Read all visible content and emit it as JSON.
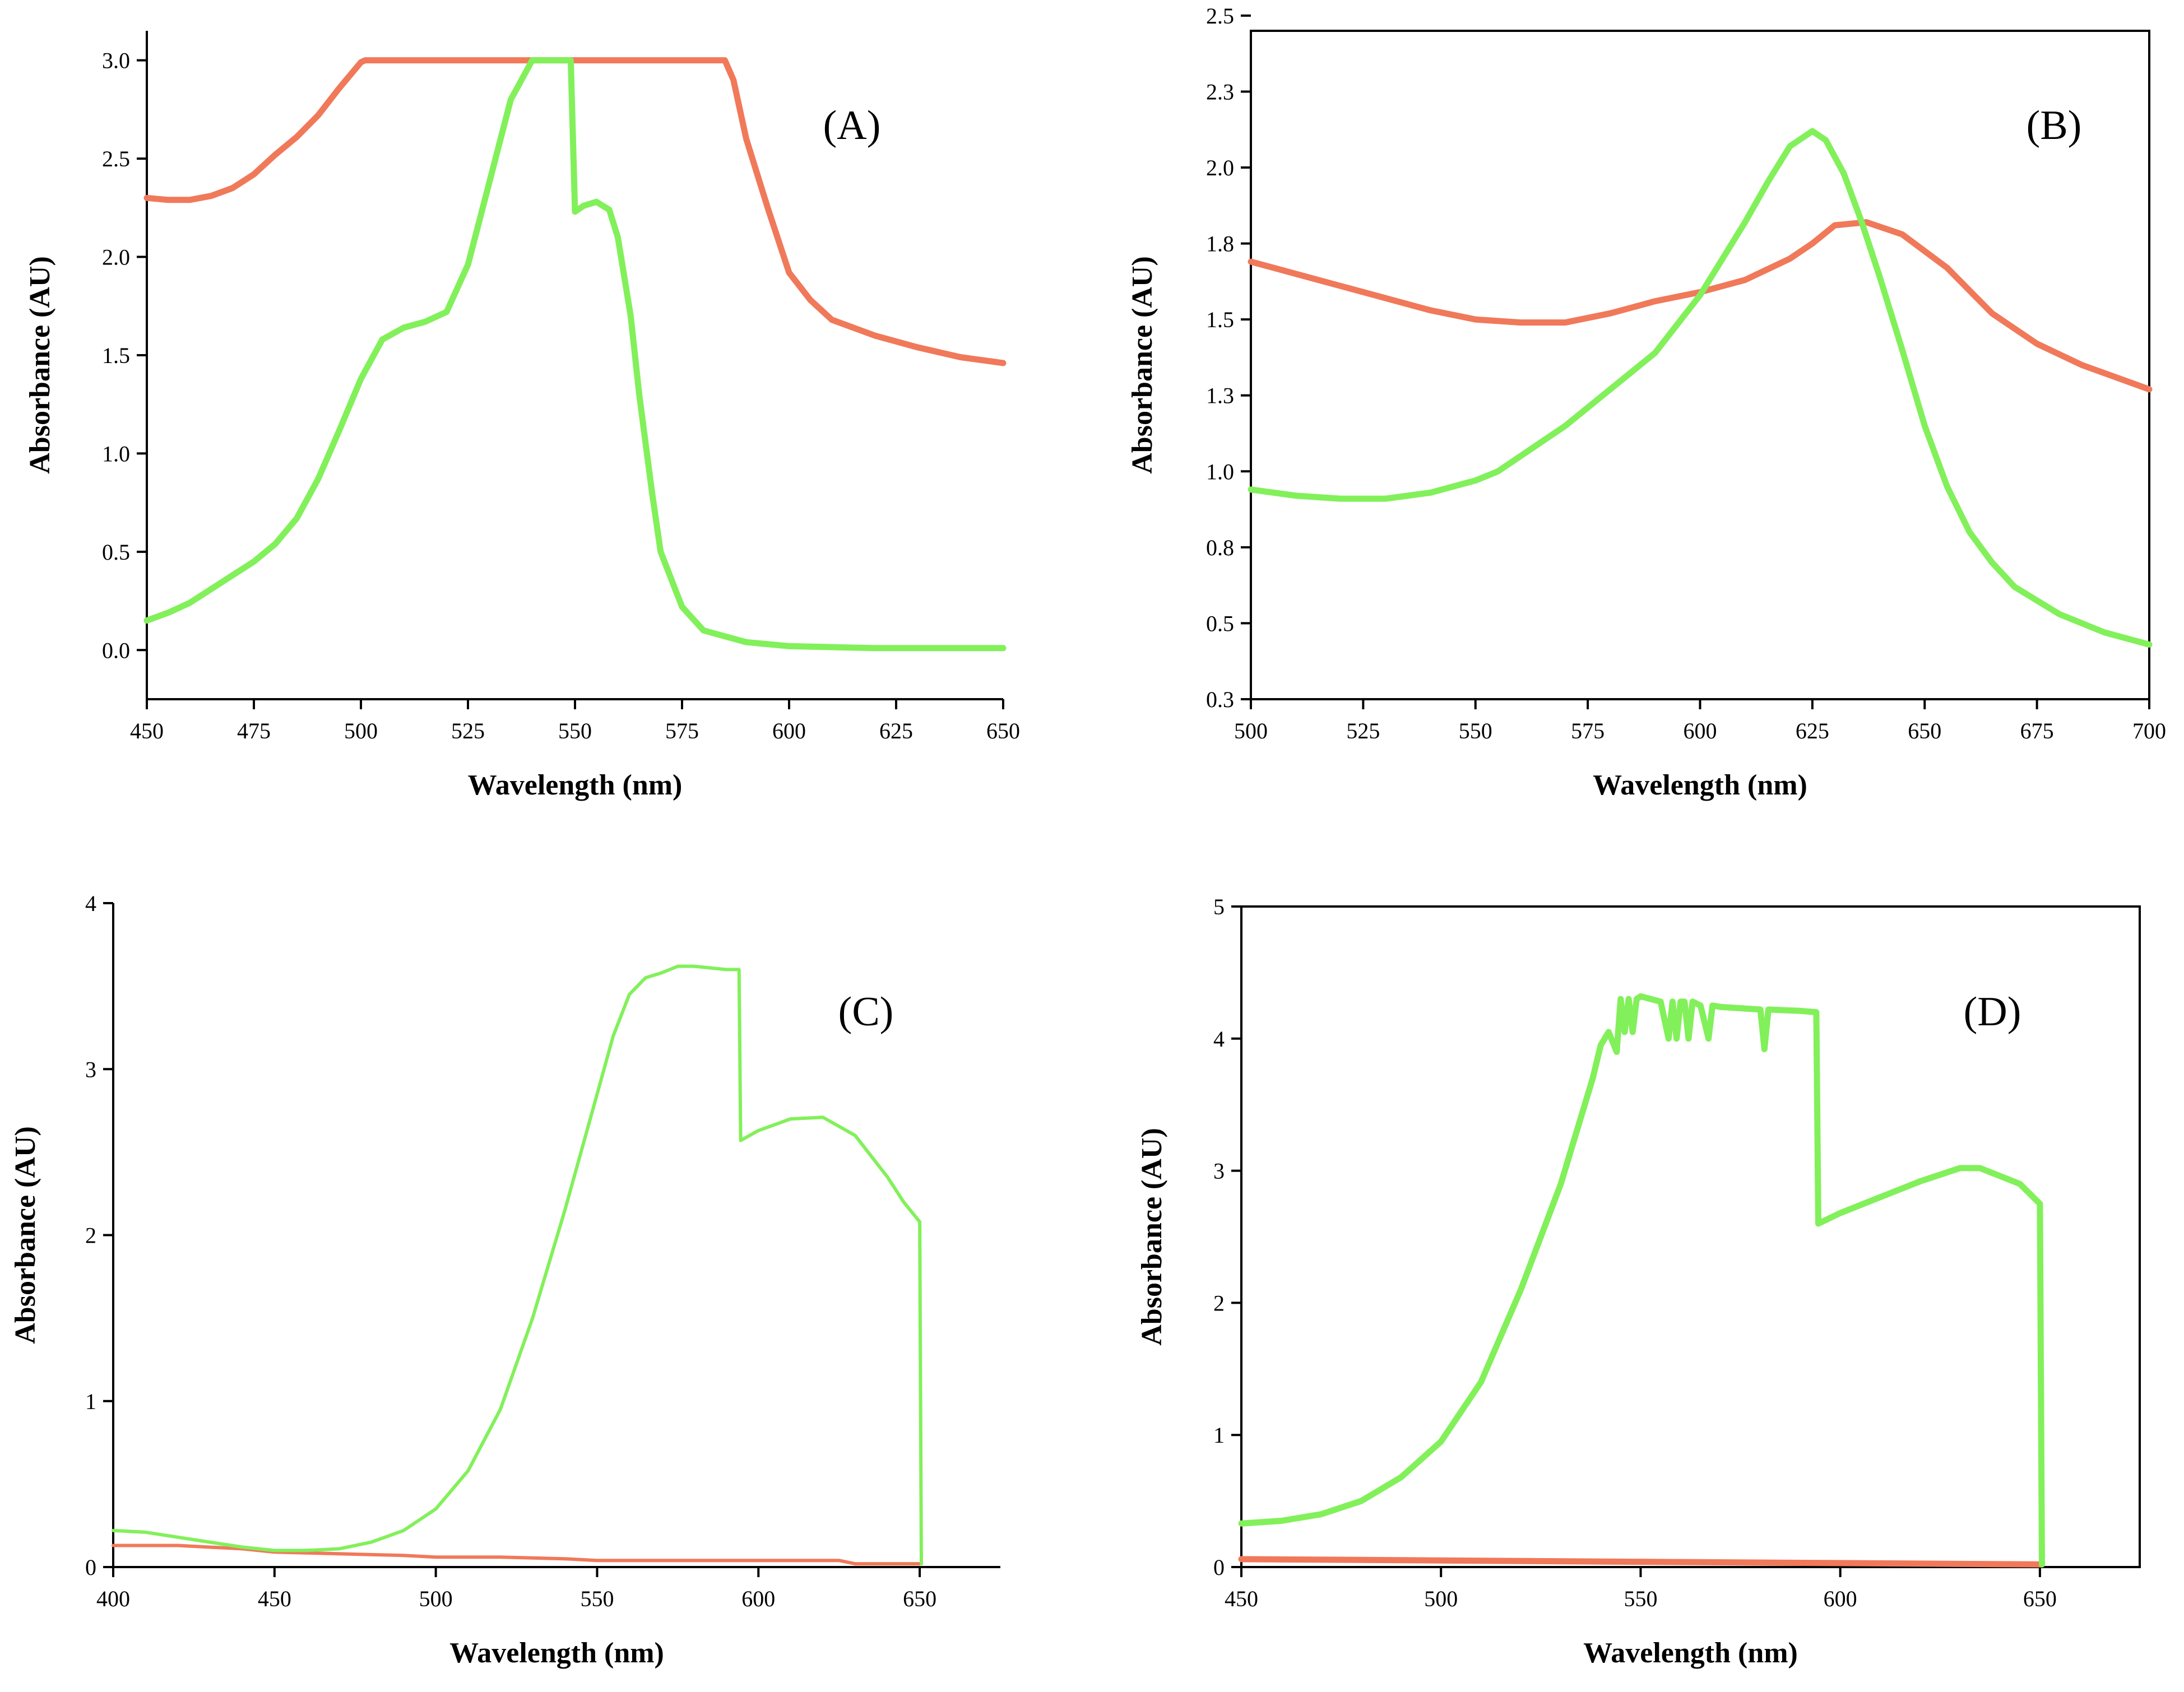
{
  "colors": {
    "green": "#82f05a",
    "red": "#f0795a"
  },
  "chart_data": [
    {
      "type": "line",
      "panel_label": "(A)",
      "xlabel": "Wavelength (nm)",
      "ylabel": "Absorbance (AU)",
      "xlim": [
        450,
        650
      ],
      "ylim": [
        -0.25,
        3.15
      ],
      "xticks": [
        "450",
        "475",
        "500",
        "525",
        "550",
        "575",
        "600",
        "625",
        "650"
      ],
      "yticks": [
        "0.0",
        "0.5",
        "1.0",
        "1.5",
        "2.0",
        "2.5",
        "3.0"
      ],
      "series": [
        {
          "name": "red",
          "color": "#f0795a",
          "x": [
            450,
            455,
            460,
            465,
            470,
            475,
            480,
            485,
            490,
            495,
            500,
            501,
            520,
            540,
            560,
            580,
            585,
            587,
            590,
            595,
            600,
            605,
            610,
            620,
            630,
            640,
            650
          ],
          "y": [
            2.3,
            2.29,
            2.29,
            2.31,
            2.35,
            2.42,
            2.52,
            2.61,
            2.72,
            2.86,
            2.99,
            3.0,
            3.0,
            3.0,
            3.0,
            3.0,
            3.0,
            2.9,
            2.6,
            2.25,
            1.92,
            1.78,
            1.68,
            1.6,
            1.54,
            1.49,
            1.46
          ]
        },
        {
          "name": "green",
          "color": "#82f05a",
          "x": [
            450,
            455,
            460,
            465,
            470,
            475,
            480,
            485,
            490,
            495,
            500,
            505,
            510,
            515,
            520,
            525,
            530,
            535,
            540,
            542,
            545,
            548,
            549,
            550,
            552,
            555,
            558,
            560,
            563,
            565,
            568,
            570,
            575,
            580,
            590,
            600,
            620,
            650
          ],
          "y": [
            0.15,
            0.19,
            0.24,
            0.31,
            0.38,
            0.45,
            0.54,
            0.67,
            0.87,
            1.12,
            1.38,
            1.58,
            1.64,
            1.67,
            1.72,
            1.96,
            2.38,
            2.8,
            3.0,
            3.0,
            3.0,
            3.0,
            3.0,
            2.23,
            2.26,
            2.28,
            2.24,
            2.1,
            1.7,
            1.3,
            0.8,
            0.5,
            0.22,
            0.1,
            0.04,
            0.02,
            0.01,
            0.01
          ]
        }
      ]
    },
    {
      "type": "line",
      "panel_label": "(B)",
      "xlabel": "Wavelength (nm)",
      "ylabel": "Absorbance (AU)",
      "xlim": [
        500,
        700
      ],
      "ylim": [
        0.3,
        2.5
      ],
      "xticks": [
        "500",
        "525",
        "550",
        "575",
        "600",
        "625",
        "650",
        "675",
        "700"
      ],
      "yticks": [
        "0.3",
        "0.5",
        "0.8",
        "1.0",
        "1.3",
        "1.5",
        "1.8",
        "2.0",
        "2.3",
        "2.5"
      ],
      "ytick_values": [
        0.3,
        0.55,
        0.8,
        1.05,
        1.3,
        1.55,
        1.8,
        2.05,
        2.3,
        2.55
      ],
      "series": [
        {
          "name": "red",
          "color": "#f0795a",
          "x": [
            500,
            510,
            520,
            530,
            540,
            550,
            560,
            570,
            580,
            585,
            590,
            600,
            610,
            620,
            625,
            630,
            637,
            645,
            655,
            665,
            675,
            685,
            700
          ],
          "y": [
            1.74,
            1.7,
            1.66,
            1.62,
            1.58,
            1.55,
            1.54,
            1.54,
            1.57,
            1.59,
            1.61,
            1.64,
            1.68,
            1.75,
            1.8,
            1.86,
            1.87,
            1.83,
            1.72,
            1.57,
            1.47,
            1.4,
            1.32
          ]
        },
        {
          "name": "green",
          "color": "#82f05a",
          "x": [
            500,
            510,
            520,
            530,
            540,
            550,
            555,
            560,
            570,
            580,
            590,
            600,
            605,
            610,
            615,
            620,
            625,
            628,
            632,
            636,
            640,
            645,
            650,
            655,
            660,
            665,
            670,
            680,
            690,
            700
          ],
          "y": [
            0.99,
            0.97,
            0.96,
            0.96,
            0.98,
            1.02,
            1.05,
            1.1,
            1.2,
            1.32,
            1.44,
            1.63,
            1.75,
            1.87,
            2.0,
            2.12,
            2.17,
            2.14,
            2.03,
            1.87,
            1.69,
            1.45,
            1.2,
            1.0,
            0.85,
            0.75,
            0.67,
            0.58,
            0.52,
            0.48
          ]
        }
      ]
    },
    {
      "type": "line",
      "panel_label": "(C)",
      "xlabel": "Wavelength (nm)",
      "ylabel": "Absorbance (AU)",
      "xlim": [
        400,
        675
      ],
      "ylim": [
        0,
        4
      ],
      "xticks": [
        "400",
        "450",
        "500",
        "550",
        "600",
        "650"
      ],
      "yticks": [
        "0",
        "1",
        "2",
        "3",
        "4"
      ],
      "series": [
        {
          "name": "red",
          "color": "#f0795a",
          "x": [
            400,
            420,
            440,
            450,
            470,
            490,
            500,
            520,
            540,
            550,
            570,
            600,
            625,
            630,
            650
          ],
          "y": [
            0.13,
            0.13,
            0.11,
            0.09,
            0.08,
            0.07,
            0.06,
            0.06,
            0.05,
            0.04,
            0.04,
            0.04,
            0.04,
            0.02,
            0.02
          ]
        },
        {
          "name": "green",
          "color": "#82f05a",
          "x": [
            400,
            410,
            420,
            430,
            440,
            450,
            460,
            470,
            480,
            490,
            500,
            510,
            520,
            530,
            540,
            550,
            555,
            560,
            565,
            570,
            575,
            580,
            590,
            594,
            594.5,
            600,
            610,
            620,
            630,
            640,
            645,
            650,
            650.5
          ],
          "y": [
            0.22,
            0.21,
            0.18,
            0.15,
            0.12,
            0.1,
            0.1,
            0.11,
            0.15,
            0.22,
            0.35,
            0.58,
            0.95,
            1.5,
            2.15,
            2.85,
            3.2,
            3.45,
            3.55,
            3.58,
            3.62,
            3.62,
            3.6,
            3.6,
            2.57,
            2.63,
            2.7,
            2.71,
            2.6,
            2.35,
            2.2,
            2.08,
            0.02
          ]
        }
      ]
    },
    {
      "type": "line",
      "panel_label": "(D)",
      "xlabel": "Wavelength (nm)",
      "ylabel": "Absorbance (AU)",
      "xlim": [
        450,
        675
      ],
      "ylim": [
        0,
        5
      ],
      "xticks": [
        "450",
        "500",
        "550",
        "600",
        "650"
      ],
      "yticks": [
        "0",
        "1",
        "2",
        "3",
        "4",
        "5"
      ],
      "series": [
        {
          "name": "red",
          "color": "#f0795a",
          "x": [
            450,
            500,
            550,
            600,
            650
          ],
          "y": [
            0.06,
            0.05,
            0.04,
            0.03,
            0.02
          ]
        },
        {
          "name": "green",
          "color": "#82f05a",
          "x": [
            450,
            460,
            470,
            480,
            490,
            500,
            510,
            520,
            530,
            535,
            538,
            540,
            542,
            544,
            545,
            546,
            547,
            548,
            549,
            550,
            555,
            557,
            558,
            559,
            560,
            561,
            562,
            563,
            565,
            567,
            568,
            570,
            580,
            581,
            582,
            590,
            594,
            594.5,
            600,
            610,
            620,
            630,
            635,
            645,
            650,
            650.5
          ],
          "y": [
            0.33,
            0.35,
            0.4,
            0.5,
            0.68,
            0.95,
            1.4,
            2.1,
            2.9,
            3.4,
            3.7,
            3.95,
            4.05,
            3.9,
            4.3,
            4.05,
            4.3,
            4.05,
            4.3,
            4.32,
            4.28,
            4.0,
            4.28,
            4.0,
            4.28,
            4.28,
            4.0,
            4.28,
            4.25,
            4.0,
            4.25,
            4.24,
            4.22,
            3.92,
            4.22,
            4.21,
            4.2,
            2.6,
            2.68,
            2.8,
            2.92,
            3.02,
            3.02,
            2.9,
            2.75,
            0.02
          ]
        }
      ]
    }
  ]
}
